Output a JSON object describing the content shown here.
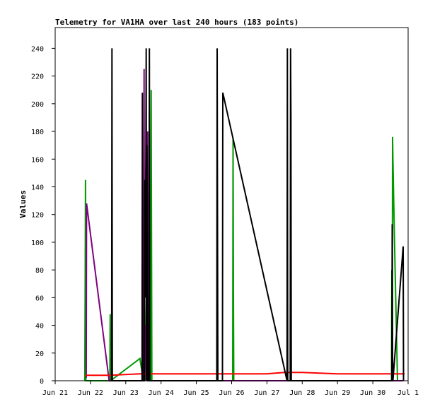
{
  "chart_data": {
    "type": "line",
    "title": "Telemetry for VA1HA over last 240 hours (183 points)",
    "ylabel": "Values",
    "xlabel": "",
    "ylim": [
      0,
      255
    ],
    "xlim": [
      0,
      10
    ],
    "yticks": [
      0,
      20,
      40,
      60,
      80,
      100,
      120,
      140,
      160,
      180,
      200,
      220,
      240
    ],
    "xticks": [
      {
        "x": 0,
        "label": "Jun 21"
      },
      {
        "x": 1,
        "label": "Jun 22"
      },
      {
        "x": 2,
        "label": "Jun 23"
      },
      {
        "x": 3,
        "label": "Jun 24"
      },
      {
        "x": 4,
        "label": "Jun 25"
      },
      {
        "x": 5,
        "label": "Jun 26"
      },
      {
        "x": 6,
        "label": "Jun 27"
      },
      {
        "x": 7,
        "label": "Jun 28"
      },
      {
        "x": 8,
        "label": "Jun 29"
      },
      {
        "x": 9,
        "label": "Jun 30"
      },
      {
        "x": 10,
        "label": "Jul 1"
      }
    ],
    "x_unit": "days since Jun 21",
    "grid": false,
    "series": [
      {
        "color": "#009900",
        "points": [
          [
            0.84,
            0
          ],
          [
            0.85,
            64
          ],
          [
            0.86,
            145
          ],
          [
            0.87,
            0
          ],
          [
            0.9,
            0
          ],
          [
            1.55,
            0
          ],
          [
            1.56,
            48
          ],
          [
            1.57,
            0
          ],
          [
            2.4,
            16
          ],
          [
            2.5,
            0
          ],
          [
            2.53,
            30
          ],
          [
            2.55,
            0
          ],
          [
            2.62,
            120
          ],
          [
            2.64,
            0
          ],
          [
            2.7,
            0
          ],
          [
            2.72,
            210
          ],
          [
            2.74,
            0
          ],
          [
            5.03,
            0
          ],
          [
            5.04,
            175
          ],
          [
            5.05,
            64
          ],
          [
            5.06,
            0
          ],
          [
            9.53,
            0
          ],
          [
            9.54,
            80
          ],
          [
            9.55,
            0
          ],
          [
            9.56,
            176
          ],
          [
            9.57,
            160
          ],
          [
            9.6,
            120
          ],
          [
            9.64,
            70
          ],
          [
            9.7,
            0
          ],
          [
            9.8,
            0
          ]
        ]
      },
      {
        "color": "#800080",
        "points": [
          [
            0.88,
            2
          ],
          [
            0.89,
            128
          ],
          [
            1.53,
            0
          ],
          [
            1.55,
            0
          ],
          [
            2.51,
            0
          ],
          [
            2.52,
            225
          ],
          [
            2.53,
            20
          ],
          [
            2.55,
            40
          ],
          [
            2.58,
            0
          ],
          [
            2.62,
            180
          ],
          [
            2.64,
            0
          ],
          [
            2.7,
            0
          ],
          [
            9.55,
            0
          ],
          [
            9.8,
            0
          ],
          [
            9.85,
            0
          ]
        ]
      },
      {
        "color": "#ff0000",
        "points": [
          [
            0.86,
            4
          ],
          [
            1.55,
            4
          ],
          [
            2.4,
            5
          ],
          [
            3.0,
            5
          ],
          [
            4.0,
            5
          ],
          [
            5.0,
            5
          ],
          [
            5.5,
            5
          ],
          [
            6.0,
            5
          ],
          [
            6.5,
            6
          ],
          [
            7.0,
            6
          ],
          [
            8.0,
            5
          ],
          [
            9.0,
            5
          ],
          [
            9.9,
            5
          ]
        ]
      },
      {
        "color": "#000000",
        "points": [
          [
            1.6,
            0
          ],
          [
            1.61,
            240
          ],
          [
            1.62,
            0
          ],
          [
            2.46,
            0
          ],
          [
            2.47,
            208
          ],
          [
            2.48,
            0
          ],
          [
            2.53,
            0
          ],
          [
            2.54,
            145
          ],
          [
            2.55,
            60
          ],
          [
            2.57,
            160
          ],
          [
            2.58,
            240
          ],
          [
            2.59,
            0
          ],
          [
            2.6,
            170
          ],
          [
            2.61,
            100
          ],
          [
            2.62,
            0
          ],
          [
            2.66,
            0
          ],
          [
            2.67,
            240
          ],
          [
            2.68,
            0
          ],
          [
            4.58,
            0
          ],
          [
            4.59,
            240
          ],
          [
            4.6,
            120
          ],
          [
            4.61,
            0
          ],
          [
            4.74,
            0
          ],
          [
            4.75,
            208
          ],
          [
            6.57,
            0
          ],
          [
            6.58,
            240
          ],
          [
            6.59,
            0
          ],
          [
            6.66,
            0
          ],
          [
            6.67,
            240
          ],
          [
            6.68,
            192
          ],
          [
            6.69,
            0
          ],
          [
            9.54,
            0
          ],
          [
            9.55,
            113
          ],
          [
            9.56,
            18
          ],
          [
            9.57,
            0
          ],
          [
            9.86,
            97
          ],
          [
            9.87,
            0
          ]
        ]
      }
    ]
  }
}
